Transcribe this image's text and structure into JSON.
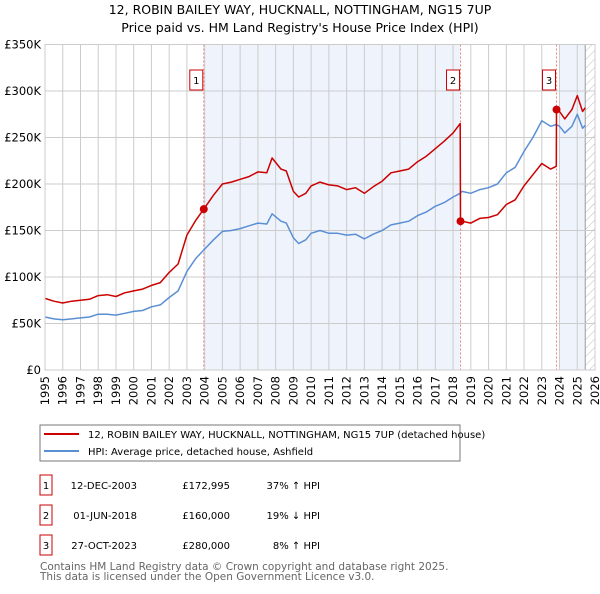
{
  "chart_data": {
    "type": "line",
    "title": "12, ROBIN BAILEY WAY, HUCKNALL, NOTTINGHAM, NG15 7UP",
    "subtitle": "Price paid vs. HM Land Registry's House Price Index (HPI)",
    "xlabel": "",
    "ylabel": "",
    "xlim": [
      1995,
      2026
    ],
    "ylim": [
      0,
      350000
    ],
    "grid": true,
    "x_ticks": [
      "1995",
      "1996",
      "1997",
      "1998",
      "1999",
      "2000",
      "2001",
      "2002",
      "2003",
      "2004",
      "2005",
      "2006",
      "2007",
      "2008",
      "2009",
      "2010",
      "2011",
      "2012",
      "2013",
      "2014",
      "2015",
      "2016",
      "2017",
      "2018",
      "2019",
      "2020",
      "2021",
      "2022",
      "2023",
      "2024",
      "2025",
      "2026"
    ],
    "y_ticks": [
      {
        "value": 0,
        "label": "£0"
      },
      {
        "value": 50000,
        "label": "£50K"
      },
      {
        "value": 100000,
        "label": "£100K"
      },
      {
        "value": 150000,
        "label": "£150K"
      },
      {
        "value": 200000,
        "label": "£200K"
      },
      {
        "value": 250000,
        "label": "£250K"
      },
      {
        "value": 300000,
        "label": "£300K"
      },
      {
        "value": 350000,
        "label": "£350K"
      }
    ],
    "shaded_periods": [
      [
        2003.95,
        2018.42
      ],
      [
        2024.0,
        2025.45
      ]
    ],
    "forecast_hatch_from": 2025.45,
    "series": [
      {
        "name": "12, ROBIN BAILEY WAY, HUCKNALL, NOTTINGHAM, NG15 7UP (detached house)",
        "color": "#cc0000",
        "x": [
          1995,
          1995.5,
          1996,
          1996.5,
          1997,
          1997.5,
          1998,
          1998.5,
          1999,
          1999.5,
          2000,
          2000.5,
          2001,
          2001.5,
          2002,
          2002.5,
          2003,
          2003.5,
          2003.95,
          2004.5,
          2005,
          2005.5,
          2006,
          2006.5,
          2007,
          2007.5,
          2007.8,
          2008.3,
          2008.6,
          2009,
          2009.3,
          2009.7,
          2010,
          2010.5,
          2011,
          2011.5,
          2012,
          2012.5,
          2013,
          2013.5,
          2014,
          2014.5,
          2015,
          2015.5,
          2016,
          2016.5,
          2017,
          2017.5,
          2018,
          2018.4,
          2018.42,
          2018.5,
          2019,
          2019.5,
          2020,
          2020.5,
          2021,
          2021.5,
          2022,
          2022.5,
          2023,
          2023.5,
          2023.82,
          2023.83,
          2024,
          2024.3,
          2024.7,
          2025,
          2025.3,
          2025.45
        ],
        "values": [
          77000,
          74000,
          72000,
          74000,
          75000,
          76000,
          80000,
          81000,
          79000,
          83000,
          85000,
          87000,
          91000,
          94000,
          105000,
          114000,
          145000,
          161000,
          172995,
          188000,
          200000,
          202000,
          205000,
          208000,
          213000,
          212000,
          228000,
          216000,
          214000,
          192000,
          186000,
          190000,
          198000,
          202000,
          199000,
          198000,
          194000,
          196000,
          190000,
          197000,
          203000,
          212000,
          214000,
          216000,
          224000,
          230000,
          238000,
          246000,
          255000,
          265000,
          160000,
          160000,
          158000,
          163000,
          164000,
          167000,
          178000,
          183000,
          198000,
          210000,
          222000,
          216000,
          219000,
          280000,
          278000,
          270000,
          280000,
          295000,
          278000,
          282000
        ]
      },
      {
        "name": "HPI: Average price, detached house, Ashfield",
        "color": "#5b8fd4",
        "x": [
          1995,
          1995.5,
          1996,
          1996.5,
          1997,
          1997.5,
          1998,
          1998.5,
          1999,
          1999.5,
          2000,
          2000.5,
          2001,
          2001.5,
          2002,
          2002.5,
          2003,
          2003.5,
          2003.95,
          2004.5,
          2005,
          2005.5,
          2006,
          2006.5,
          2007,
          2007.5,
          2007.8,
          2008.3,
          2008.6,
          2009,
          2009.3,
          2009.7,
          2010,
          2010.5,
          2011,
          2011.5,
          2012,
          2012.5,
          2013,
          2013.5,
          2014,
          2014.5,
          2015,
          2015.5,
          2016,
          2016.5,
          2017,
          2017.5,
          2018,
          2018.4,
          2018.5,
          2019,
          2019.5,
          2020,
          2020.5,
          2021,
          2021.5,
          2022,
          2022.5,
          2023,
          2023.5,
          2023.82,
          2024,
          2024.3,
          2024.7,
          2025,
          2025.3,
          2025.45
        ],
        "values": [
          57000,
          55000,
          54000,
          55000,
          56000,
          57000,
          60000,
          60000,
          59000,
          61000,
          63000,
          64000,
          68000,
          70000,
          78000,
          85000,
          106000,
          120000,
          129000,
          140000,
          149000,
          150000,
          152000,
          155000,
          158000,
          157000,
          168000,
          160000,
          158000,
          142000,
          136000,
          140000,
          147000,
          150000,
          147000,
          147000,
          145000,
          146000,
          141000,
          146000,
          150000,
          156000,
          158000,
          160000,
          166000,
          170000,
          176000,
          180000,
          186000,
          190000,
          192000,
          190000,
          194000,
          196000,
          200000,
          212000,
          218000,
          235000,
          250000,
          268000,
          262000,
          264000,
          262000,
          255000,
          262000,
          275000,
          260000,
          263000
        ]
      }
    ],
    "sales": [
      {
        "num": "1",
        "x": 2003.95,
        "price": 172995,
        "date": "12-DEC-2003",
        "price_label": "£172,995",
        "hpi_diff": "37% ↑ HPI"
      },
      {
        "num": "2",
        "x": 2018.42,
        "price": 160000,
        "date": "01-JUN-2018",
        "price_label": "£160,000",
        "hpi_diff": "19% ↓ HPI"
      },
      {
        "num": "3",
        "x": 2023.83,
        "price": 280000,
        "date": "27-OCT-2023",
        "price_label": "£280,000",
        "hpi_diff": "8% ↑ HPI"
      }
    ]
  },
  "title_line1": "12, ROBIN BAILEY WAY, HUCKNALL, NOTTINGHAM, NG15 7UP",
  "title_line2": "Price paid vs. HM Land Registry's House Price Index (HPI)",
  "legend": {
    "property": "12, ROBIN BAILEY WAY, HUCKNALL, NOTTINGHAM, NG15 7UP (detached house)",
    "hpi": "HPI: Average price, detached house, Ashfield"
  },
  "footer": {
    "line1": "Contains HM Land Registry data © Crown copyright and database right 2025.",
    "line2": "This data is licensed under the Open Government Licence v3.0."
  },
  "colors": {
    "property": "#cc0000",
    "hpi": "#5b8fd4",
    "shade": "#eef3fc"
  }
}
